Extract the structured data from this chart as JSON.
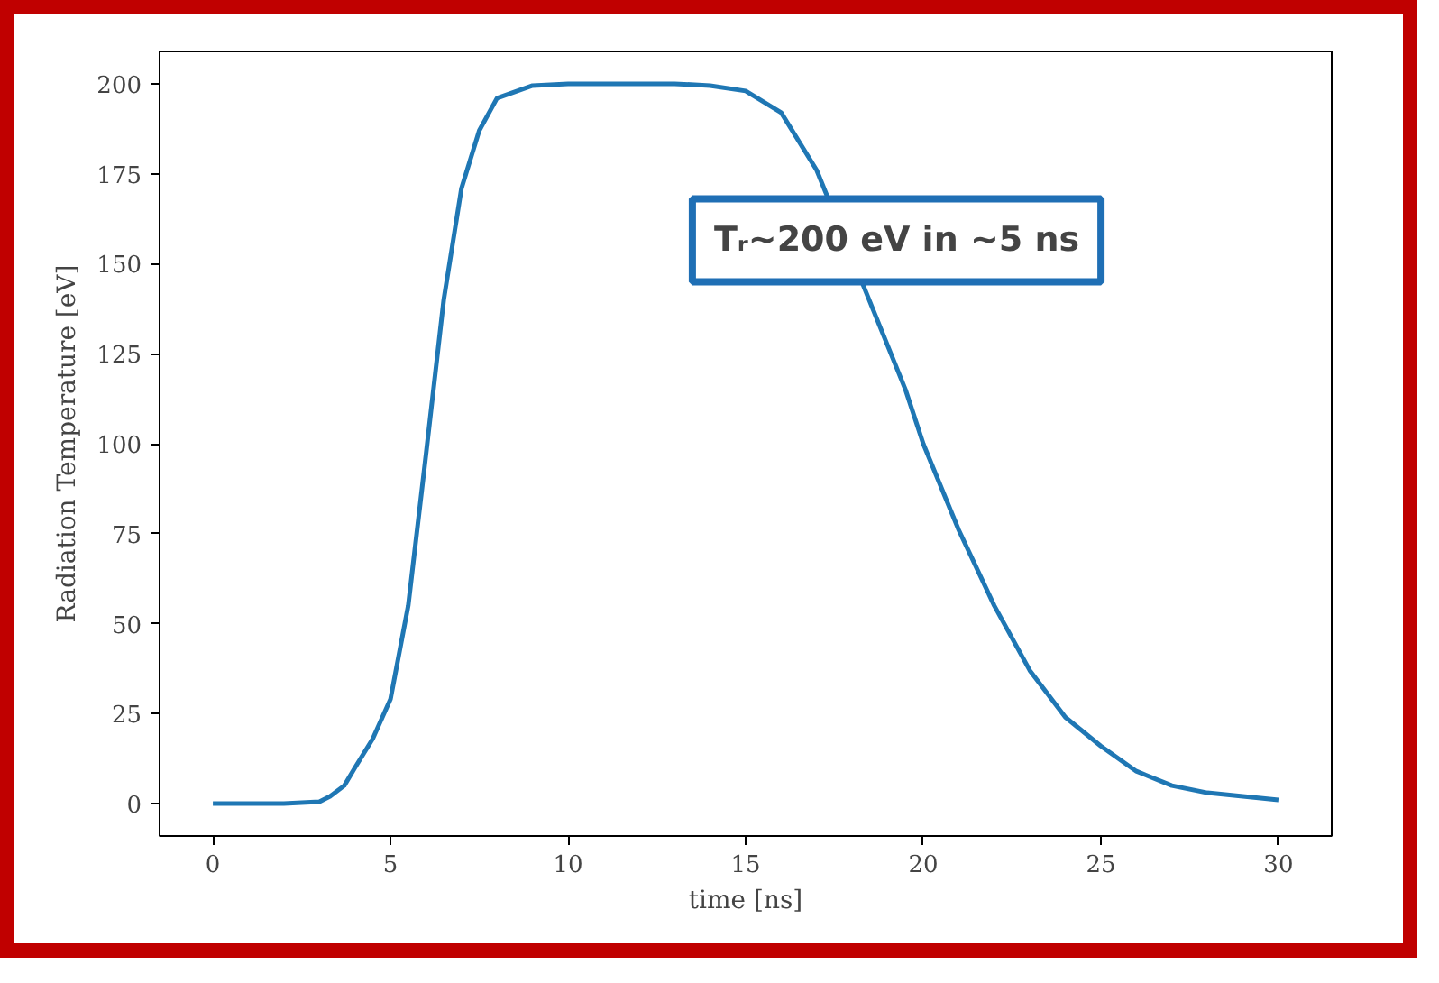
{
  "chart_data": {
    "type": "line",
    "xlabel": "time [ns]",
    "ylabel": "Radiation Temperature [eV]",
    "x": [
      0,
      1,
      2,
      3,
      3.3,
      3.7,
      4,
      4.5,
      5,
      5.5,
      6,
      6.5,
      7,
      7.5,
      8,
      9,
      10,
      11,
      12,
      13,
      14,
      15,
      16,
      17,
      19.5,
      20,
      21,
      22,
      23,
      24,
      25,
      26,
      27,
      28,
      29,
      30
    ],
    "series": [
      {
        "color": "#1f77b4",
        "values": [
          0,
          0,
          0,
          0.5,
          2,
          5,
          10,
          18,
          29,
          55,
          97,
          140,
          171,
          187,
          196,
          199.5,
          200,
          200,
          200,
          200,
          199.5,
          198,
          192,
          176,
          115,
          100,
          76,
          55,
          37,
          24,
          16,
          9,
          5,
          3,
          2,
          1
        ]
      }
    ],
    "xlim": [
      -1.5,
      31.5
    ],
    "ylim": [
      -9,
      209
    ],
    "xticks": [
      0,
      5,
      10,
      15,
      20,
      25,
      30
    ],
    "yticks": [
      0,
      25,
      50,
      75,
      100,
      125,
      150,
      175,
      200
    ],
    "grid": false,
    "marker": "none",
    "line_style": "solid",
    "annotations": [
      "Tᵣ~200 eV in ~5 ns"
    ]
  }
}
